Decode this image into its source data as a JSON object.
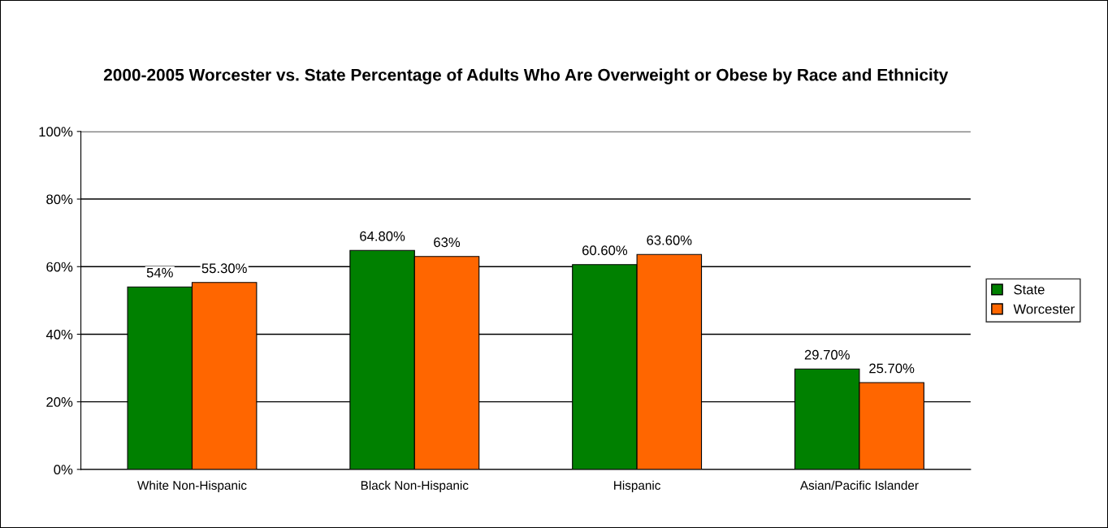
{
  "chart_data": {
    "type": "bar",
    "title": "2000-2005 Worcester vs. State Percentage of Adults Who Are Overweight or Obese by Race and Ethnicity",
    "categories": [
      "White Non-Hispanic",
      "Black Non-Hispanic",
      "Hispanic",
      "Asian/Pacific Islander"
    ],
    "series": [
      {
        "name": "State",
        "color": "#008000",
        "values": [
          54,
          64.8,
          60.6,
          29.7
        ],
        "value_labels": [
          "54%",
          "64.80%",
          "60.60%",
          "29.70%"
        ]
      },
      {
        "name": "Worcester",
        "color": "#ff6600",
        "values": [
          55.3,
          63,
          63.6,
          25.7
        ],
        "value_labels": [
          "55.30%",
          "63%",
          "63.60%",
          "25.70%"
        ]
      }
    ],
    "ylim": [
      0,
      100
    ],
    "yticks": [
      {
        "value": 0,
        "label": "0%"
      },
      {
        "value": 20,
        "label": "20%"
      },
      {
        "value": 40,
        "label": "40%"
      },
      {
        "value": 60,
        "label": "60%"
      },
      {
        "value": 80,
        "label": "80%"
      },
      {
        "value": 100,
        "label": "100%"
      }
    ],
    "grid": "y",
    "legend": "right"
  }
}
